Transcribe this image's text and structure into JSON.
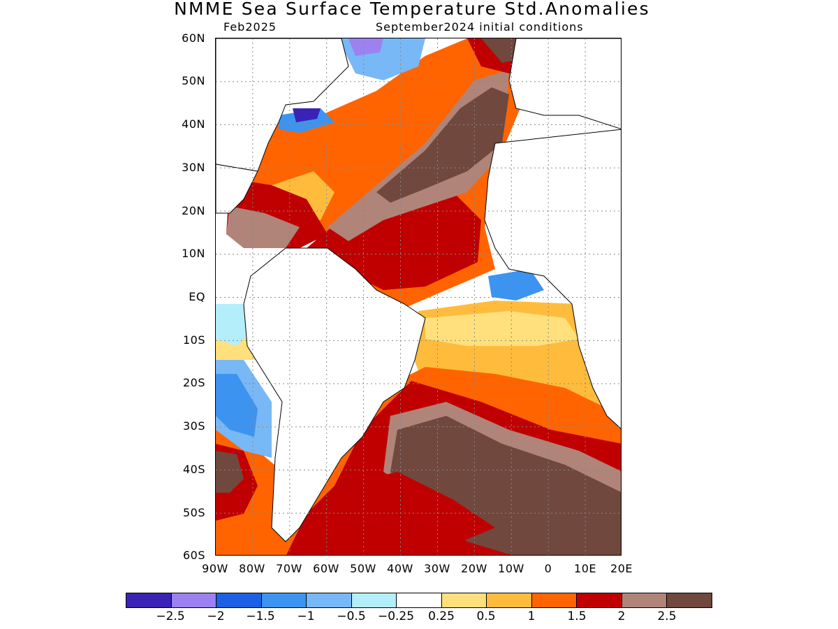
{
  "title": "NMME Sea Surface Temperature Std.Anomalies",
  "valid_month": "Feb2025",
  "initial_conditions": "September2024 initial conditions",
  "lat_labels": [
    "60N",
    "50N",
    "40N",
    "30N",
    "20N",
    "10N",
    "EQ",
    "10S",
    "20S",
    "30S",
    "40S",
    "50S",
    "60S"
  ],
  "lon_labels": [
    "90W",
    "80W",
    "70W",
    "60W",
    "50W",
    "40W",
    "30W",
    "20W",
    "10W",
    "0",
    "10E",
    "20E"
  ],
  "colorbar": {
    "colors": [
      "#3a22b4",
      "#9b82f0",
      "#1c60e4",
      "#3c94f0",
      "#78b8f6",
      "#b4eefa",
      "#ffffff",
      "#ffe07c",
      "#ffbc3c",
      "#ff6400",
      "#c00000",
      "#b08478",
      "#70483e"
    ],
    "labels": [
      "−2.5",
      "−2",
      "−1.5",
      "−1",
      "−0.5",
      "−0.25",
      "0.25",
      "0.5",
      "1",
      "1.5",
      "2",
      "2.5"
    ]
  }
}
